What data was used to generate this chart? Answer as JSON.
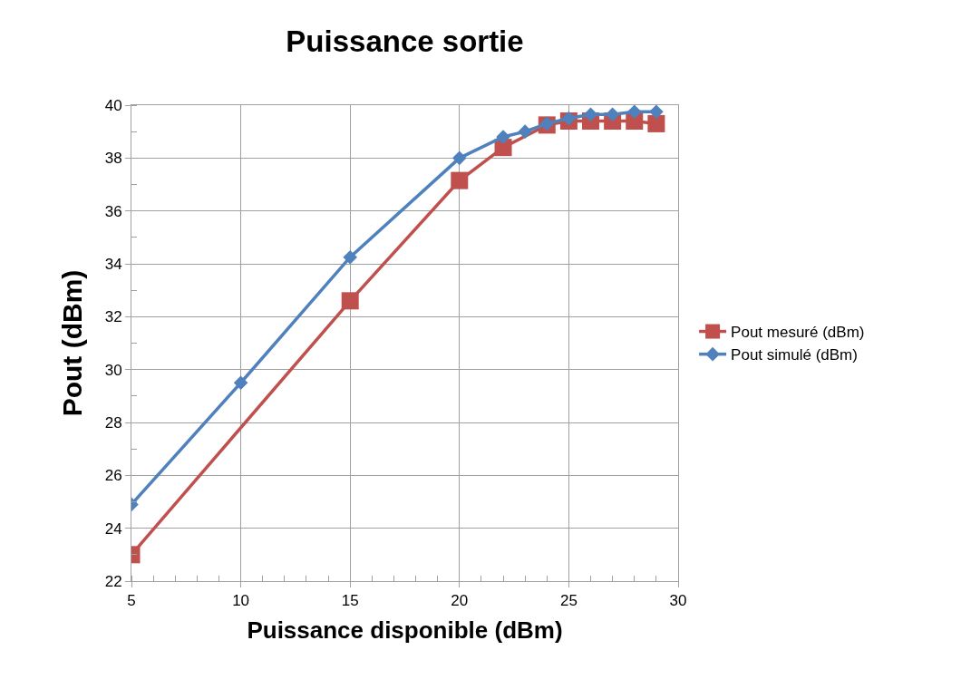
{
  "chart_data": {
    "type": "line",
    "title": "Puissance sortie",
    "xlabel": "Puissance disponible (dBm)",
    "ylabel": "Pout (dBm)",
    "xlim": [
      5,
      30
    ],
    "xticks": [
      5,
      10,
      15,
      20,
      25,
      30
    ],
    "ylim": [
      22,
      40
    ],
    "yticks": [
      22,
      24,
      26,
      28,
      30,
      32,
      34,
      36,
      38,
      40
    ],
    "grid": true,
    "legend": "right",
    "series": [
      {
        "name": "Pout mesuré (dBm)",
        "color": "#c0504d",
        "marker": "square",
        "x": [
          5,
          15,
          20,
          22,
          24,
          25,
          26,
          27,
          28,
          29
        ],
        "values": [
          23.0,
          32.6,
          37.15,
          38.4,
          39.25,
          39.4,
          39.4,
          39.4,
          39.4,
          39.3
        ]
      },
      {
        "name": "Pout simulé (dBm)",
        "color": "#4f81bd",
        "marker": "diamond",
        "x": [
          5,
          10,
          15,
          20,
          22,
          23,
          24,
          25,
          26,
          27,
          28,
          29
        ],
        "values": [
          24.9,
          29.5,
          34.25,
          38.0,
          38.8,
          39.0,
          39.3,
          39.5,
          39.65,
          39.65,
          39.75,
          39.75
        ]
      }
    ]
  }
}
